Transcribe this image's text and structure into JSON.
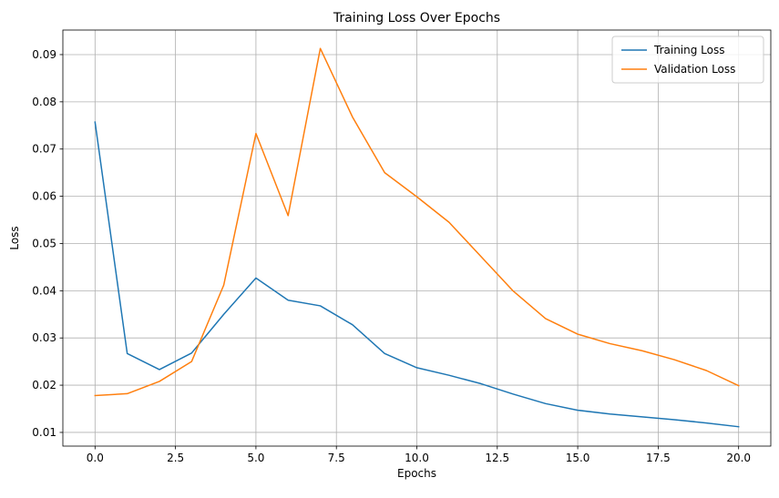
{
  "chart_data": {
    "type": "line",
    "title": "Training Loss Over Epochs",
    "xlabel": "Epochs",
    "ylabel": "Loss",
    "xlim": [
      -1.0,
      21.0
    ],
    "ylim": [
      0.0071,
      0.0952
    ],
    "xticks": [
      0.0,
      2.5,
      5.0,
      7.5,
      10.0,
      12.5,
      15.0,
      17.5,
      20.0
    ],
    "xtick_labels": [
      "0.0",
      "2.5",
      "5.0",
      "7.5",
      "10.0",
      "12.5",
      "15.0",
      "17.5",
      "20.0"
    ],
    "yticks": [
      0.01,
      0.02,
      0.03,
      0.04,
      0.05,
      0.06,
      0.07,
      0.08,
      0.09
    ],
    "ytick_labels": [
      "0.01",
      "0.02",
      "0.03",
      "0.04",
      "0.05",
      "0.06",
      "0.07",
      "0.08",
      "0.09"
    ],
    "grid": true,
    "legend_position": "top-right",
    "x": [
      0,
      1,
      2,
      3,
      4,
      5,
      6,
      7,
      8,
      9,
      10,
      11,
      12,
      13,
      14,
      15,
      16,
      17,
      18,
      19,
      20
    ],
    "series": [
      {
        "name": "Training Loss",
        "color": "#1f77b4",
        "values": [
          0.0757,
          0.0267,
          0.0233,
          0.0268,
          0.035,
          0.0427,
          0.038,
          0.0368,
          0.0328,
          0.0267,
          0.0237,
          0.0221,
          0.0203,
          0.0181,
          0.0161,
          0.0147,
          0.0139,
          0.0133,
          0.0127,
          0.012,
          0.0112
        ]
      },
      {
        "name": "Validation Loss",
        "color": "#ff7f0e",
        "values": [
          0.0178,
          0.0182,
          0.0208,
          0.025,
          0.0412,
          0.0733,
          0.0559,
          0.0913,
          0.0768,
          0.065,
          0.0599,
          0.0545,
          0.0472,
          0.0399,
          0.0341,
          0.0308,
          0.0288,
          0.0273,
          0.0254,
          0.0231,
          0.0199
        ]
      }
    ]
  }
}
